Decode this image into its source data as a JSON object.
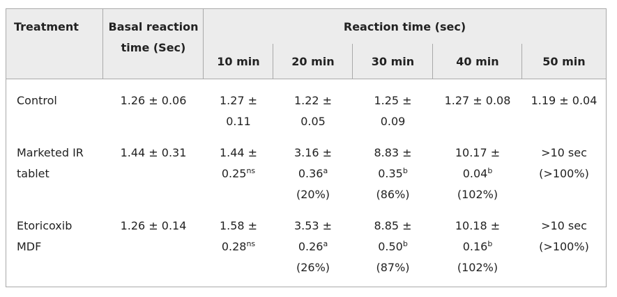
{
  "header": {
    "treatment": "Treatment",
    "basal_line1": "Basal reaction",
    "basal_line2": "time (Sec)",
    "reaction_time": "Reaction time (sec)",
    "times": [
      "10 min",
      "20 min",
      "30 min",
      "40 min",
      "50 min"
    ]
  },
  "rows": [
    {
      "treatment": [
        "Control"
      ],
      "basal": "1.26 ± 0.06",
      "cells": [
        [
          {
            "t": "1.27 ±"
          },
          {
            "t": "0.11"
          }
        ],
        [
          {
            "t": "1.22 ±"
          },
          {
            "t": "0.05"
          }
        ],
        [
          {
            "t": "1.25 ±"
          },
          {
            "t": "0.09"
          }
        ],
        [
          {
            "t": "1.27 ± 0.08"
          }
        ],
        [
          {
            "t": "1.19 ± 0.04"
          }
        ]
      ]
    },
    {
      "treatment": [
        "Marketed IR",
        "tablet"
      ],
      "basal": "1.44 ± 0.31",
      "cells": [
        [
          {
            "t": "1.44 ±"
          },
          {
            "t": "0.25",
            "sup": "ns"
          }
        ],
        [
          {
            "t": "3.16 ±"
          },
          {
            "t": "0.36",
            "sup": "a"
          },
          {
            "t": "(20%)"
          }
        ],
        [
          {
            "t": "8.83 ±"
          },
          {
            "t": "0.35",
            "sup": "b"
          },
          {
            "t": "(86%)"
          }
        ],
        [
          {
            "t": "10.17 ±"
          },
          {
            "t": "0.04",
            "sup": "b"
          },
          {
            "t": "(102%)"
          }
        ],
        [
          {
            "t": ">10 sec"
          },
          {
            "t": "(>100%)"
          }
        ]
      ]
    },
    {
      "treatment": [
        "Etoricoxib",
        "MDF"
      ],
      "basal": "1.26 ± 0.14",
      "cells": [
        [
          {
            "t": "1.58 ±"
          },
          {
            "t": "0.28",
            "sup": "ns"
          }
        ],
        [
          {
            "t": "3.53 ±"
          },
          {
            "t": "0.26",
            "sup": "a"
          },
          {
            "t": "(26%)"
          }
        ],
        [
          {
            "t": "8.85 ±"
          },
          {
            "t": "0.50",
            "sup": "b"
          },
          {
            "t": "(87%)"
          }
        ],
        [
          {
            "t": "10.18 ±"
          },
          {
            "t": "0.16",
            "sup": "b"
          },
          {
            "t": "(102%)"
          }
        ],
        [
          {
            "t": ">10 sec"
          },
          {
            "t": "(>100%)"
          }
        ]
      ]
    }
  ]
}
